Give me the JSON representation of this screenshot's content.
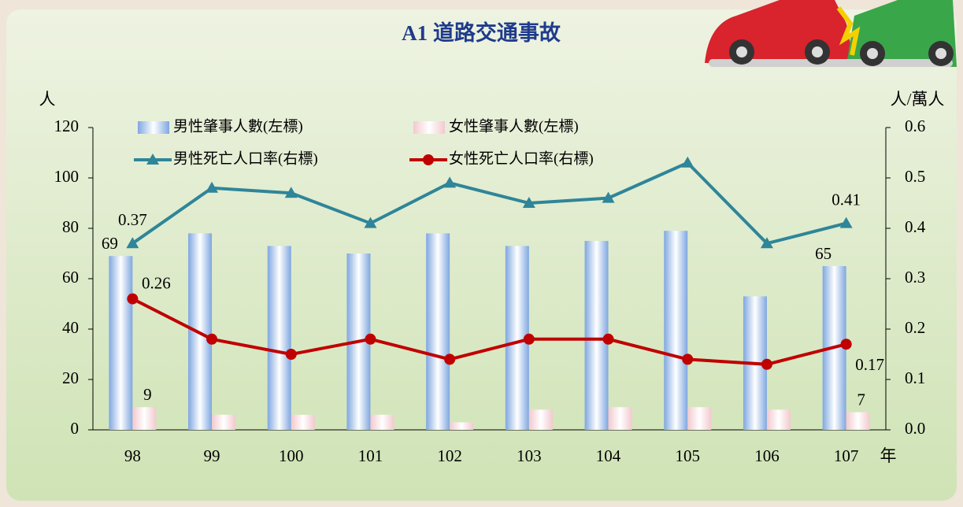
{
  "chart_data": {
    "type": "combo",
    "title": "A1 道路交通事故",
    "y_label": "人",
    "y2_label": "人/萬人",
    "x_label": "年",
    "categories": [
      "98",
      "99",
      "100",
      "101",
      "102",
      "103",
      "104",
      "105",
      "106",
      "107"
    ],
    "series": [
      {
        "name": "男性肇事人數(左標)",
        "type": "bar",
        "axis": "y",
        "color": "#7fa7e0",
        "values": [
          69,
          78,
          73,
          70,
          78,
          73,
          75,
          79,
          53,
          65
        ],
        "value_labels": [
          "69",
          null,
          null,
          null,
          null,
          null,
          null,
          null,
          null,
          "65"
        ]
      },
      {
        "name": "女性肇事人數(左標)",
        "type": "bar",
        "axis": "y",
        "color": "#f2c9cf",
        "values": [
          9,
          6,
          6,
          6,
          3,
          8,
          9,
          9,
          8,
          7
        ],
        "value_labels": [
          "9",
          null,
          null,
          null,
          null,
          null,
          null,
          null,
          null,
          "7"
        ]
      },
      {
        "name": "男性死亡人口率(右標)",
        "type": "line",
        "axis": "y2",
        "color": "#2f8599",
        "marker": "triangle",
        "values": [
          0.37,
          0.48,
          0.47,
          0.41,
          0.49,
          0.45,
          0.46,
          0.53,
          0.37,
          0.41
        ],
        "value_labels": [
          "0.37",
          null,
          null,
          null,
          null,
          null,
          null,
          null,
          null,
          "0.41"
        ]
      },
      {
        "name": "女性死亡人口率(右標)",
        "type": "line",
        "axis": "y2",
        "color": "#c00000",
        "marker": "circle",
        "values": [
          0.26,
          0.18,
          0.15,
          0.18,
          0.14,
          0.18,
          0.18,
          0.14,
          0.13,
          0.17
        ],
        "value_labels": [
          "0.26",
          null,
          null,
          null,
          null,
          null,
          null,
          null,
          null,
          "0.17"
        ]
      }
    ],
    "ylim": [
      0,
      120
    ],
    "yticks": [
      0,
      20,
      40,
      60,
      80,
      100,
      120
    ],
    "y2lim": [
      0,
      0.6
    ],
    "y2ticks": [
      {
        "value": 0,
        "label": "0.0"
      },
      0.1,
      0.2,
      0.3,
      0.4,
      0.5,
      0.6
    ]
  }
}
